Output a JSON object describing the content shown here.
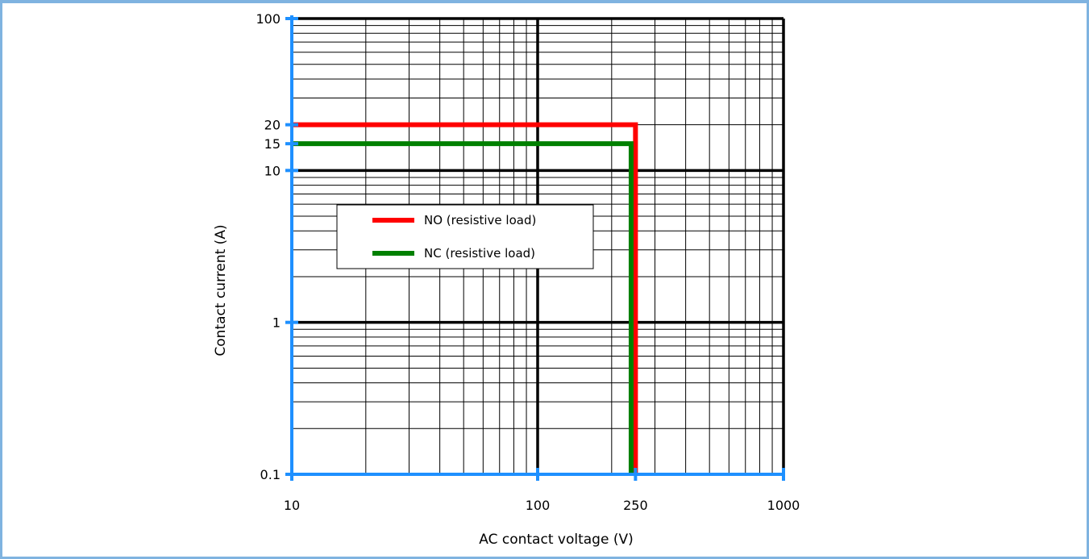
{
  "chart_data": {
    "type": "line",
    "xlabel": "AC contact voltage (V)",
    "ylabel": "Contact current (A)",
    "x_scale": "log",
    "y_scale": "log",
    "xlim": [
      10,
      1000
    ],
    "ylim": [
      0.1,
      100
    ],
    "x_ticks": [
      10,
      100,
      250,
      1000
    ],
    "x_tick_labels": [
      "10",
      "100",
      "250",
      "1000"
    ],
    "y_ticks": [
      0.1,
      1,
      10,
      15,
      20,
      100
    ],
    "y_tick_labels": [
      "0.1",
      "1",
      "10",
      "15",
      "20",
      "100"
    ],
    "grid": true,
    "legend_position": "center-left",
    "series": [
      {
        "name": "NO (resistive load)",
        "color": "#ff0000",
        "x": [
          10,
          250,
          250
        ],
        "y": [
          20,
          20,
          0.1
        ]
      },
      {
        "name": "NC (resistive load)",
        "color": "#008000",
        "x": [
          10,
          240,
          240
        ],
        "y": [
          15,
          15,
          0.1
        ]
      }
    ],
    "colors": {
      "axis": "#1e90ff",
      "major_grid": "#000000",
      "minor_grid": "#000000"
    }
  }
}
